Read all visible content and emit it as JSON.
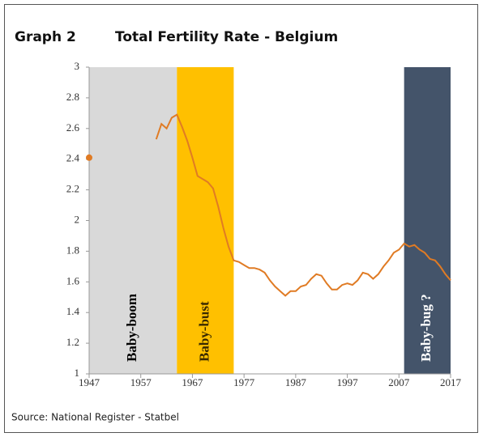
{
  "header": "Graph 2",
  "chart_data": {
    "type": "line",
    "title": "Total Fertility Rate - Belgium",
    "source": "Source: National Register - Statbel",
    "color": "#e07b24",
    "x": [
      1947,
      1960,
      1961,
      1962,
      1963,
      1964,
      1965,
      1966,
      1967,
      1968,
      1969,
      1970,
      1971,
      1972,
      1973,
      1974,
      1975,
      1976,
      1977,
      1978,
      1979,
      1980,
      1981,
      1982,
      1983,
      1984,
      1985,
      1986,
      1987,
      1988,
      1989,
      1990,
      1991,
      1992,
      1993,
      1994,
      1995,
      1996,
      1997,
      1998,
      1999,
      2000,
      2001,
      2002,
      2003,
      2004,
      2005,
      2006,
      2007,
      2008,
      2009,
      2010,
      2011,
      2012,
      2013,
      2014,
      2015,
      2016,
      2017
    ],
    "values": [
      2.41,
      2.53,
      2.63,
      2.6,
      2.67,
      2.69,
      2.61,
      2.52,
      2.41,
      2.29,
      2.27,
      2.25,
      2.21,
      2.09,
      1.95,
      1.83,
      1.74,
      1.73,
      1.71,
      1.69,
      1.69,
      1.68,
      1.66,
      1.61,
      1.57,
      1.54,
      1.51,
      1.54,
      1.54,
      1.57,
      1.58,
      1.62,
      1.65,
      1.64,
      1.59,
      1.55,
      1.55,
      1.58,
      1.59,
      1.58,
      1.61,
      1.66,
      1.65,
      1.62,
      1.65,
      1.7,
      1.74,
      1.79,
      1.81,
      1.85,
      1.83,
      1.84,
      1.81,
      1.79,
      1.75,
      1.74,
      1.7,
      1.65,
      1.61
    ],
    "bands": [
      {
        "label": "Baby-boom",
        "start": 1947,
        "end": 1964,
        "color": "#d9d9d9",
        "text_color": "#000000"
      },
      {
        "label": "Baby-bust",
        "start": 1964,
        "end": 1975,
        "color": "#ffc000",
        "text_color": "#3a2a00"
      },
      {
        "label": "Baby-bug ?",
        "start": 2008,
        "end": 2017,
        "color": "#44546a",
        "text_color": "#ffffff"
      }
    ],
    "xlim": [
      1947,
      2017
    ],
    "xticks": [
      1947,
      1957,
      1967,
      1977,
      1987,
      1997,
      2007,
      2017
    ],
    "ylim": [
      1,
      3
    ],
    "yticks": [
      1,
      1.2,
      1.4,
      1.6,
      1.8,
      2,
      2.2,
      2.4,
      2.6,
      2.8,
      3
    ]
  }
}
